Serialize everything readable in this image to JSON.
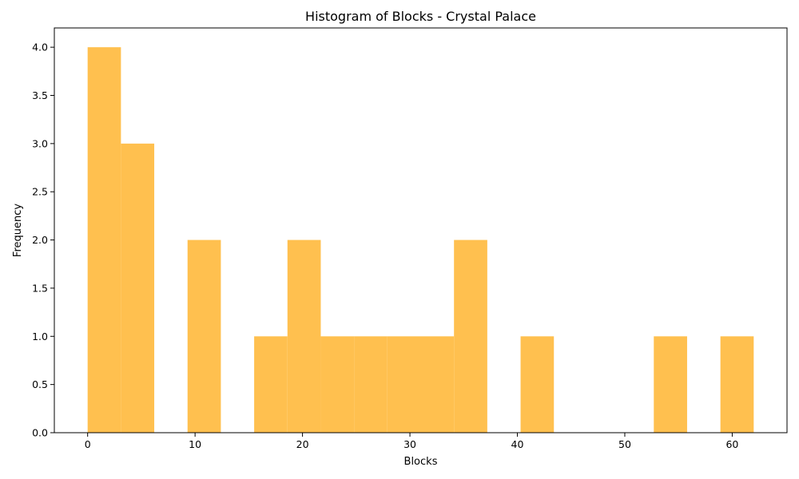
{
  "chart_data": {
    "type": "bar",
    "title": "Histogram of Blocks - Crystal Palace",
    "xlabel": "Blocks",
    "ylabel": "Frequency",
    "bin_edges": [
      0,
      3.1,
      6.2,
      9.3,
      12.4,
      15.5,
      18.6,
      21.7,
      24.8,
      27.9,
      31,
      34.1,
      37.2,
      40.3,
      43.4,
      46.5,
      49.6,
      52.7,
      55.8,
      58.9,
      62
    ],
    "values": [
      4,
      3,
      0,
      2,
      0,
      1,
      2,
      1,
      1,
      1,
      1,
      2,
      0,
      1,
      0,
      0,
      0,
      1,
      0,
      1
    ],
    "xlim": [
      -3.1,
      65.1
    ],
    "ylim": [
      0,
      4.2
    ],
    "xticks": [
      0,
      10,
      20,
      30,
      40,
      50,
      60
    ],
    "xtick_labels": [
      "0",
      "10",
      "20",
      "30",
      "40",
      "50",
      "60"
    ],
    "yticks": [
      0,
      0.5,
      1,
      1.5,
      2,
      2.5,
      3,
      3.5,
      4
    ],
    "ytick_labels": [
      "0.0",
      "0.5",
      "1.0",
      "1.5",
      "2.0",
      "2.5",
      "3.0",
      "3.5",
      "4.0"
    ],
    "bar_color": "#FFC04F",
    "grid": false,
    "legend": "none"
  }
}
